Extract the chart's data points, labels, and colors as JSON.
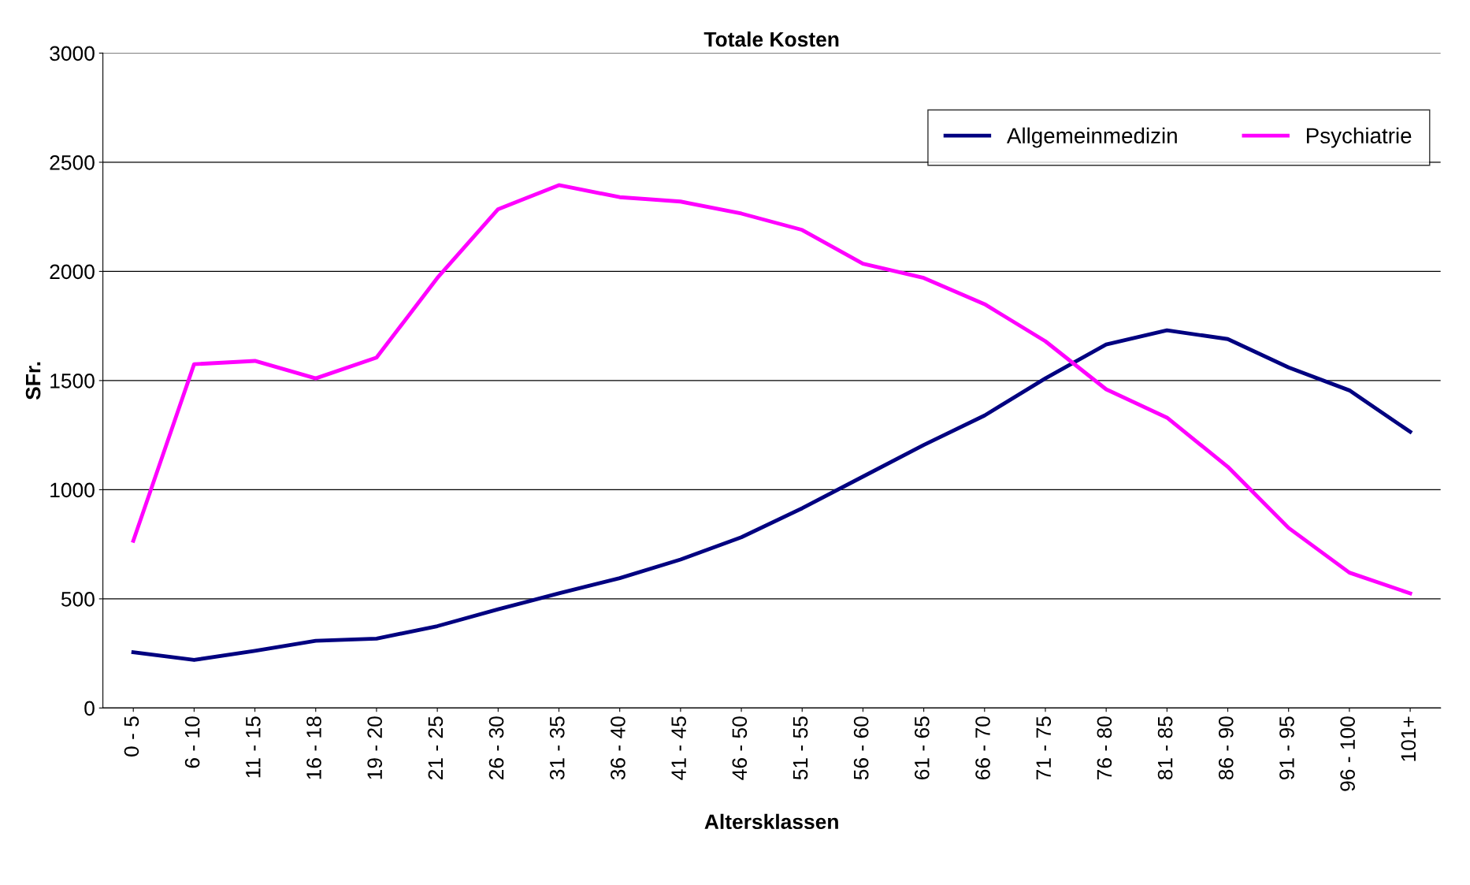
{
  "chart_data": {
    "type": "line",
    "title": "Totale Kosten",
    "xlabel": "Altersklassen",
    "ylabel": "SFr.",
    "categories": [
      "0 - 5",
      "6 - 10",
      "11 - 15",
      "16 - 18",
      "19 - 20",
      "21 - 25",
      "26 - 30",
      "31 - 35",
      "36 - 40",
      "41 - 45",
      "46 - 50",
      "51 - 55",
      "56 - 60",
      "61 - 65",
      "66 - 70",
      "71 - 75",
      "76 - 80",
      "81 - 85",
      "86 - 90",
      "91 - 95",
      "96 - 100",
      "101+"
    ],
    "series": [
      {
        "name": "Allgemeinmedizin",
        "color": "#000080",
        "values": [
          255,
          220,
          262,
          308,
          318,
          375,
          452,
          525,
          595,
          680,
          782,
          915,
          1060,
          1205,
          1340,
          1510,
          1665,
          1730,
          1690,
          1560,
          1455,
          1265
        ]
      },
      {
        "name": "Psychiatrie",
        "color": "#ff00ff",
        "values": [
          766,
          1575,
          1590,
          1510,
          1605,
          1970,
          2285,
          2395,
          2340,
          2320,
          2265,
          2190,
          2035,
          1970,
          1850,
          1680,
          1460,
          1330,
          1105,
          825,
          620,
          525
        ]
      }
    ],
    "ylim": [
      0,
      3000
    ],
    "yticks": [
      0,
      500,
      1000,
      1500,
      2000,
      2500,
      3000
    ],
    "grid": "y",
    "legend": "top right",
    "marker": "none",
    "line_style": "solid"
  }
}
